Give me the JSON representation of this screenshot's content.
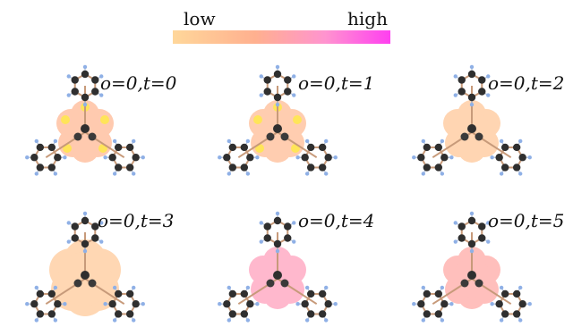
{
  "colorbar": {
    "low_label": "low",
    "high_label": "high",
    "colors": [
      "#ffd79a",
      "#ffb08f",
      "#ff94cf",
      "#ff3ff0"
    ]
  },
  "panels": [
    {
      "label": "o=0,t=0",
      "level": 0.32,
      "highlight": "yellow"
    },
    {
      "label": "o=0,t=1",
      "level": 0.28,
      "highlight": "yellow"
    },
    {
      "label": "o=0,t=2",
      "level": 0.18,
      "highlight": "none"
    },
    {
      "label": "o=0,t=3",
      "level": 0.15,
      "highlight": "none"
    },
    {
      "label": "o=0,t=4",
      "level": 0.6,
      "highlight": "none"
    },
    {
      "label": "o=0,t=5",
      "level": 0.48,
      "highlight": "none"
    }
  ]
}
